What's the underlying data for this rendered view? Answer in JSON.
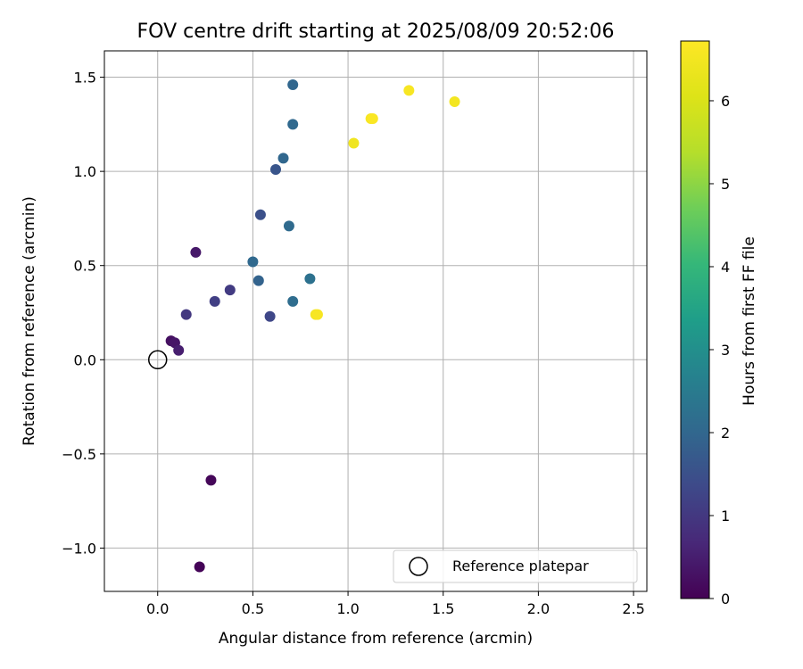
{
  "chart_data": {
    "type": "scatter",
    "title": "FOV centre drift starting at 2025/08/09 20:52:06",
    "xlabel": "Angular distance from reference (arcmin)",
    "ylabel": "Rotation from reference (arcmin)",
    "xlim": [
      -0.28,
      2.57
    ],
    "ylim": [
      -1.23,
      1.64
    ],
    "xticks": [
      0.0,
      0.5,
      1.0,
      1.5,
      2.0,
      2.5
    ],
    "xtick_labels": [
      "0.0",
      "0.5",
      "1.0",
      "1.5",
      "2.0",
      "2.5"
    ],
    "yticks": [
      -1.0,
      -0.5,
      0.0,
      0.5,
      1.0,
      1.5
    ],
    "ytick_labels": [
      "−1.0",
      "−0.5",
      "0.0",
      "0.5",
      "1.0",
      "1.5"
    ],
    "grid": true,
    "colormap": "viridis",
    "colorbar": {
      "label": "Hours from first FF file",
      "range": [
        0,
        6.72
      ],
      "ticks": [
        0,
        1,
        2,
        3,
        4,
        5,
        6
      ],
      "tick_labels": [
        "0",
        "1",
        "2",
        "3",
        "4",
        "5",
        "6"
      ]
    },
    "points": [
      {
        "x": 0.22,
        "y": -1.1,
        "c": 0.05
      },
      {
        "x": 0.28,
        "y": -0.64,
        "c": 0.1
      },
      {
        "x": 0.07,
        "y": 0.1,
        "c": 0.25
      },
      {
        "x": 0.09,
        "y": 0.09,
        "c": 0.35
      },
      {
        "x": 0.11,
        "y": 0.05,
        "c": 0.5
      },
      {
        "x": 0.2,
        "y": 0.57,
        "c": 0.4
      },
      {
        "x": 0.15,
        "y": 0.24,
        "c": 1.0
      },
      {
        "x": 0.3,
        "y": 0.31,
        "c": 1.15
      },
      {
        "x": 0.38,
        "y": 0.37,
        "c": 1.05
      },
      {
        "x": 0.59,
        "y": 0.23,
        "c": 1.3
      },
      {
        "x": 0.54,
        "y": 0.77,
        "c": 1.5
      },
      {
        "x": 0.62,
        "y": 1.01,
        "c": 1.6
      },
      {
        "x": 0.53,
        "y": 0.42,
        "c": 1.9
      },
      {
        "x": 0.5,
        "y": 0.52,
        "c": 2.05
      },
      {
        "x": 0.69,
        "y": 0.71,
        "c": 2.1
      },
      {
        "x": 0.66,
        "y": 1.07,
        "c": 2.0
      },
      {
        "x": 0.71,
        "y": 1.25,
        "c": 2.05
      },
      {
        "x": 0.71,
        "y": 1.46,
        "c": 2.0
      },
      {
        "x": 0.71,
        "y": 0.31,
        "c": 2.15
      },
      {
        "x": 0.8,
        "y": 0.43,
        "c": 2.25
      },
      {
        "x": 0.83,
        "y": 0.24,
        "c": 6.55
      },
      {
        "x": 0.84,
        "y": 0.24,
        "c": 6.6
      },
      {
        "x": 1.03,
        "y": 1.15,
        "c": 6.45
      },
      {
        "x": 1.12,
        "y": 1.28,
        "c": 6.6
      },
      {
        "x": 1.13,
        "y": 1.28,
        "c": 6.65
      },
      {
        "x": 1.32,
        "y": 1.43,
        "c": 6.6
      },
      {
        "x": 1.56,
        "y": 1.37,
        "c": 6.5
      }
    ],
    "reference": {
      "x": 0.0,
      "y": 0.0,
      "label": "Reference platepar"
    },
    "legend": {
      "placement": "lower-right",
      "entries": [
        "Reference platepar"
      ]
    }
  }
}
